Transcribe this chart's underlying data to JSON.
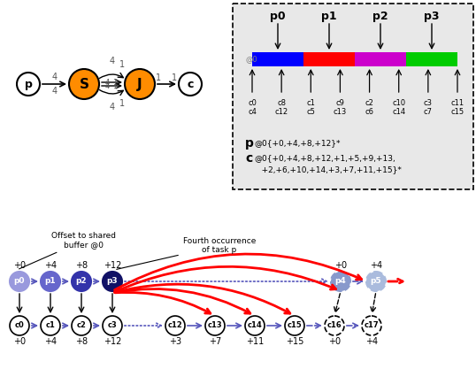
{
  "bg_color": "#ffffff",
  "graph_bg": "#e8e8e8",
  "orange": "#FF8C00",
  "buf_colors": [
    "#0000ff",
    "#ff0000",
    "#cc00cc",
    "#00cc00"
  ],
  "p_labels": [
    "p0",
    "p1",
    "p2",
    "p3"
  ],
  "c_row1": [
    "c0",
    "c8",
    "c1",
    "c9",
    "c2",
    "c10",
    "c3",
    "c11"
  ],
  "c_row2": [
    "c4",
    "c12",
    "c5",
    "c13",
    "c6",
    "c14",
    "c7",
    "c15"
  ],
  "p_formula": "@0{+0,+4,+8,+12}*",
  "c_formula_line1": "@0{+0,+4,+8,+12,+1,+5,+9,+13,",
  "c_formula_line2": "   +2,+6,+10,+14,+3,+7,+11,+15}*",
  "arrow_color": "#5555bb",
  "p_colors": [
    "#9999dd",
    "#6666cc",
    "#3333aa",
    "#111166"
  ],
  "p45_colors": [
    "#8899cc",
    "#aabbdd"
  ],
  "c_offsets": [
    "+0",
    "+4",
    "+8",
    "+12",
    "+3",
    "+7",
    "+11",
    "+15",
    "+0",
    "+4"
  ],
  "p_offsets": [
    "+0",
    "+4",
    "+8",
    "+12",
    "+0",
    "+4"
  ]
}
